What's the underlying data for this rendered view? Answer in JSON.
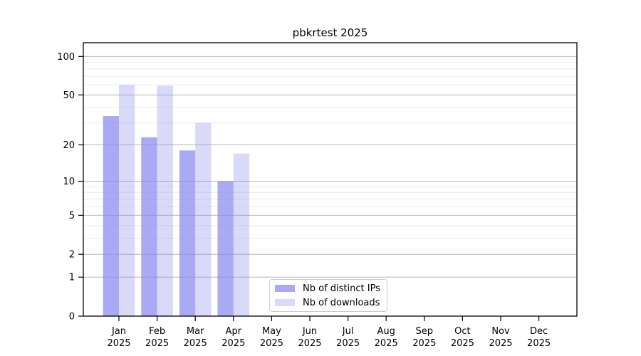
{
  "chart_data": {
    "type": "bar",
    "title": "pbkrtest 2025",
    "x_year_label": "2025",
    "categories": [
      "Jan",
      "Feb",
      "Mar",
      "Apr",
      "May",
      "Jun",
      "Jul",
      "Aug",
      "Sep",
      "Oct",
      "Nov",
      "Dec"
    ],
    "series": [
      {
        "name": "Nb of distinct IPs",
        "color": "rgba(136,136,240,0.72)",
        "values": [
          34,
          23,
          18,
          10,
          null,
          null,
          null,
          null,
          null,
          null,
          null,
          null
        ]
      },
      {
        "name": "Nb of downloads",
        "color": "rgba(136,136,240,0.32)",
        "values": [
          60,
          59,
          30,
          17,
          null,
          null,
          null,
          null,
          null,
          null,
          null,
          null
        ]
      }
    ],
    "yscale": "log1p",
    "ylim": [
      0,
      128
    ],
    "yticks": [
      0,
      1,
      2,
      5,
      10,
      20,
      50,
      100
    ],
    "yticks_minor": [
      3,
      4,
      6,
      7,
      8,
      9,
      30,
      40,
      60,
      70,
      80,
      90
    ],
    "grid": {
      "major_color": "#b6b6b6",
      "minor_color": "#ebebeb"
    },
    "axis_color": "#000000",
    "background_color": "#ffffff",
    "legend_position": "bottom-center"
  }
}
